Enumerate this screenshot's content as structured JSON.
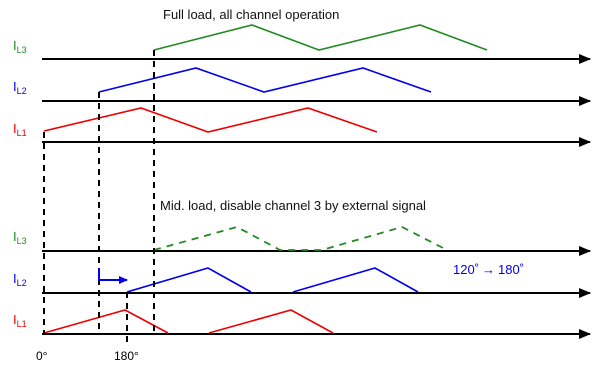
{
  "sections": {
    "full": {
      "title": "Full load, all channel operation"
    },
    "mid": {
      "title": "Mid. load, disable channel 3 by external signal"
    }
  },
  "labels": {
    "prefix": "I",
    "l3_sub": "L3",
    "l2_sub": "L2",
    "l1_sub": "L1"
  },
  "phase_axis": {
    "start": "0°",
    "shift": "180°"
  },
  "shift_note": {
    "from": "120˚",
    "arrow": "→",
    "to": "180˚"
  },
  "colors": {
    "L3": "#228b22",
    "L2": "#0000ee",
    "L1": "#ee0000",
    "axis": "#000000"
  }
}
